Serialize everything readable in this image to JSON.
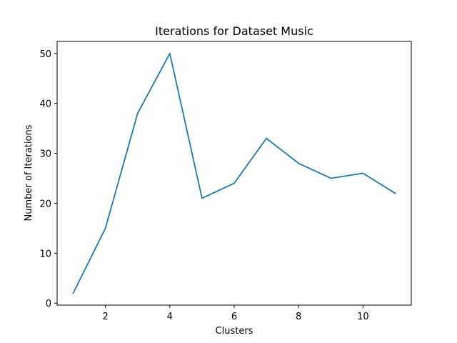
{
  "chart_data": {
    "type": "line",
    "title": "Iterations for Dataset Music",
    "xlabel": "Clusters",
    "ylabel": "Number of Iterations",
    "x": [
      1,
      2,
      3,
      4,
      5,
      6,
      7,
      8,
      9,
      10,
      11
    ],
    "series": [
      {
        "values": [
          2,
          15,
          38,
          50,
          21,
          24,
          33,
          28,
          25,
          26,
          22
        ],
        "color": "#1f77b4"
      }
    ],
    "xlim": [
      0.5,
      11.5
    ],
    "ylim": [
      -0.4,
      52.4
    ],
    "xticks": [
      2,
      4,
      6,
      8,
      10
    ],
    "yticks": [
      0,
      10,
      20,
      30,
      40,
      50
    ],
    "grid": false,
    "legend": "none"
  }
}
